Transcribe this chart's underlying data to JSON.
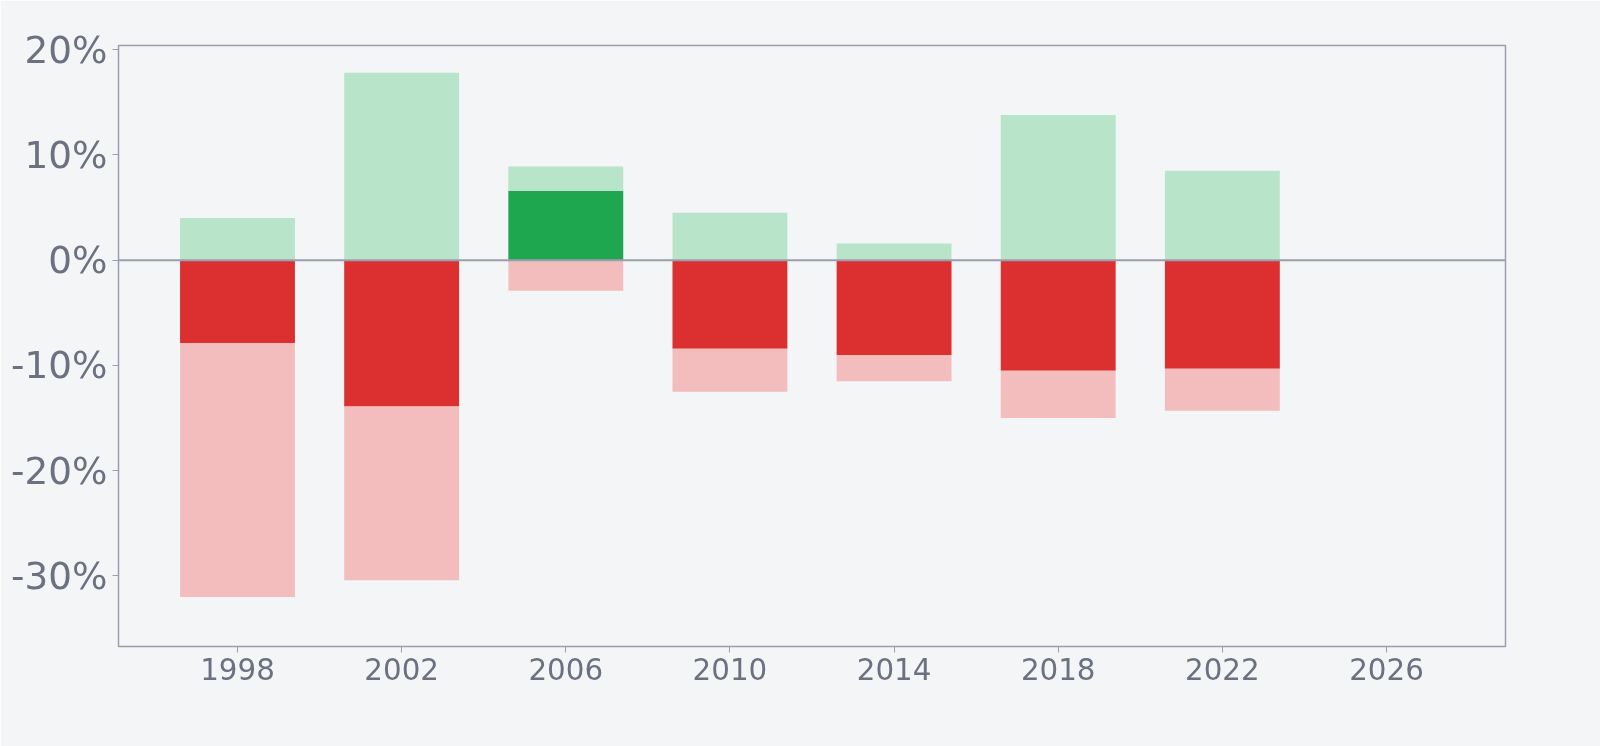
{
  "chart_data": {
    "type": "bar",
    "x": [
      1998,
      2002,
      2006,
      2010,
      2014,
      2018,
      2022
    ],
    "stacked": true,
    "series": [
      {
        "colors": [
          "#dc3030",
          "#dc3030",
          "#1fa750",
          "#dc3030",
          "#dc3030",
          "#dc3030",
          "#dc3030"
        ],
        "values": [
          -7.9,
          -13.9,
          6.6,
          -8.4,
          -9.0,
          -10.5,
          -10.3
        ]
      },
      {
        "color": "#b8e4c9",
        "values": [
          4.0,
          17.8,
          2.3,
          4.5,
          1.6,
          13.8,
          8.5
        ]
      },
      {
        "color": "#f4bdbd",
        "values": [
          -24.1,
          -16.5,
          -2.9,
          -4.1,
          -2.5,
          -4.5,
          -4.0
        ]
      }
    ],
    "xlim": [
      1995.1,
      2028.9
    ],
    "xticks": [
      1998,
      2002,
      2006,
      2010,
      2014,
      2018,
      2022,
      2026
    ],
    "ylim": [
      -36.7,
      20.4
    ],
    "yticks": [
      {
        "value": 20,
        "label": "20%"
      },
      {
        "value": 10,
        "label": "10%"
      },
      {
        "value": 0,
        "label": "0%"
      },
      {
        "value": -10,
        "label": "-10%"
      },
      {
        "value": -20,
        "label": "-20%"
      },
      {
        "value": -30,
        "label": "-30%"
      }
    ],
    "ref_lines": [
      {
        "axis": "y",
        "value": 0,
        "color": "#9a9fb0"
      }
    ],
    "grid": false
  }
}
